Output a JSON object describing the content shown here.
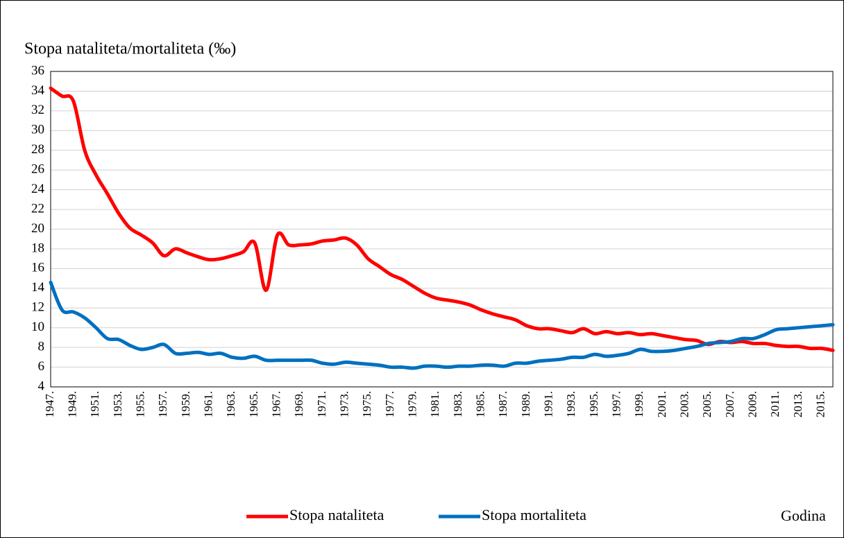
{
  "chart_data": {
    "type": "line",
    "title": "Stopa nataliteta/mortaliteta (‰)",
    "x_label": "Godina",
    "categories": [
      "1947.",
      null,
      "1949.",
      null,
      "1951.",
      null,
      "1953.",
      null,
      "1955.",
      null,
      "1957.",
      null,
      "1959.",
      null,
      "1961.",
      null,
      "1963.",
      null,
      "1965.",
      null,
      "1967.",
      null,
      "1969.",
      null,
      "1971.",
      null,
      "1973.",
      null,
      "1975.",
      null,
      "1977.",
      null,
      "1979.",
      null,
      "1981.",
      null,
      "1983.",
      null,
      "1985.",
      null,
      "1987.",
      null,
      "1989.",
      null,
      "1991.",
      null,
      "1993.",
      null,
      "1995.",
      null,
      "1997.",
      null,
      "1999.",
      null,
      "2001.",
      null,
      "2003.",
      null,
      "2005.",
      null,
      "2007.",
      null,
      "2009.",
      null,
      "2011.",
      null,
      "2013.",
      null,
      "2015.",
      null
    ],
    "series": [
      {
        "name": "Stopa nataliteta",
        "color": "#ff0000",
        "values": [
          34.3,
          33.5,
          33.0,
          28.0,
          25.5,
          23.6,
          21.6,
          20.1,
          19.4,
          18.6,
          17.3,
          18.0,
          17.6,
          17.2,
          16.9,
          17.0,
          17.3,
          17.7,
          18.6,
          13.8,
          19.4,
          18.4,
          18.4,
          18.5,
          18.8,
          18.9,
          19.1,
          18.4,
          17.0,
          16.2,
          15.4,
          14.9,
          14.2,
          13.5,
          13.0,
          12.8,
          12.6,
          12.3,
          11.8,
          11.4,
          11.1,
          10.8,
          10.2,
          9.9,
          9.9,
          9.7,
          9.5,
          9.9,
          9.4,
          9.6,
          9.4,
          9.5,
          9.3,
          9.4,
          9.2,
          9.0,
          8.8,
          8.7,
          8.3,
          8.6,
          8.5,
          8.6,
          8.4,
          8.4,
          8.2,
          8.1,
          8.1,
          7.9,
          7.9,
          7.7
        ]
      },
      {
        "name": "Stopa mortaliteta",
        "color": "#0070c0",
        "values": [
          14.6,
          11.8,
          11.6,
          11.0,
          10.0,
          8.9,
          8.8,
          8.2,
          7.8,
          8.0,
          8.3,
          7.4,
          7.4,
          7.5,
          7.3,
          7.4,
          7.0,
          6.9,
          7.1,
          6.7,
          6.7,
          6.7,
          6.7,
          6.7,
          6.4,
          6.3,
          6.5,
          6.4,
          6.3,
          6.2,
          6.0,
          6.0,
          5.9,
          6.1,
          6.1,
          6.0,
          6.1,
          6.1,
          6.2,
          6.2,
          6.1,
          6.4,
          6.4,
          6.6,
          6.7,
          6.8,
          7.0,
          7.0,
          7.3,
          7.1,
          7.2,
          7.4,
          7.8,
          7.6,
          7.6,
          7.7,
          7.9,
          8.1,
          8.4,
          8.5,
          8.6,
          8.9,
          8.9,
          9.3,
          9.8,
          9.9,
          10.0,
          10.1,
          10.2,
          10.3
        ]
      }
    ],
    "ylim": [
      4,
      36
    ],
    "yticks": [
      4,
      6,
      8,
      10,
      12,
      14,
      16,
      18,
      20,
      22,
      24,
      26,
      28,
      30,
      32,
      34,
      36
    ],
    "grid": true,
    "legend": "bottom"
  }
}
